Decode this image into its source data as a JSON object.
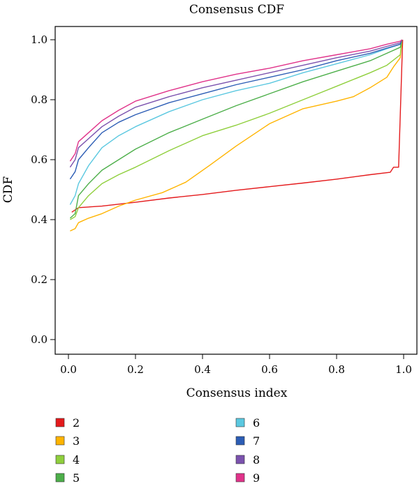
{
  "chart_data": {
    "type": "line",
    "title": "Consensus CDF",
    "xlabel": "Consensus index",
    "ylabel": "CDF",
    "xlim": [
      0,
      1
    ],
    "ylim": [
      0,
      1
    ],
    "xticks": [
      0.0,
      0.2,
      0.4,
      0.6,
      0.8,
      1.0
    ],
    "xtick_labels": [
      "0.0",
      "0.2",
      "0.4",
      "0.6",
      "0.8",
      "1.0"
    ],
    "yticks": [
      0.0,
      0.2,
      0.4,
      0.6,
      0.8,
      1.0
    ],
    "ytick_labels": [
      "0.0",
      "0.2",
      "0.4",
      "0.6",
      "0.8",
      "1.0"
    ],
    "grid": false,
    "legend_placement": "below",
    "series": [
      {
        "name": "2",
        "color": "#e41a1c",
        "points": [
          [
            0.01,
            0.425
          ],
          [
            0.03,
            0.44
          ],
          [
            0.1,
            0.445
          ],
          [
            0.2,
            0.458
          ],
          [
            0.3,
            0.472
          ],
          [
            0.4,
            0.484
          ],
          [
            0.5,
            0.498
          ],
          [
            0.6,
            0.51
          ],
          [
            0.7,
            0.522
          ],
          [
            0.8,
            0.535
          ],
          [
            0.9,
            0.55
          ],
          [
            0.96,
            0.558
          ],
          [
            0.97,
            0.575
          ],
          [
            0.985,
            0.575
          ],
          [
            0.997,
            1.0
          ]
        ]
      },
      {
        "name": "3",
        "color": "#ffb400",
        "points": [
          [
            0.005,
            0.362
          ],
          [
            0.02,
            0.37
          ],
          [
            0.03,
            0.39
          ],
          [
            0.06,
            0.405
          ],
          [
            0.1,
            0.42
          ],
          [
            0.15,
            0.445
          ],
          [
            0.2,
            0.465
          ],
          [
            0.28,
            0.49
          ],
          [
            0.35,
            0.525
          ],
          [
            0.42,
            0.58
          ],
          [
            0.5,
            0.645
          ],
          [
            0.6,
            0.72
          ],
          [
            0.7,
            0.77
          ],
          [
            0.8,
            0.795
          ],
          [
            0.85,
            0.81
          ],
          [
            0.9,
            0.84
          ],
          [
            0.95,
            0.875
          ],
          [
            0.97,
            0.91
          ],
          [
            0.99,
            0.94
          ],
          [
            0.995,
            1.0
          ]
        ]
      },
      {
        "name": "4",
        "color": "#8fcf3c",
        "points": [
          [
            0.005,
            0.4
          ],
          [
            0.02,
            0.41
          ],
          [
            0.03,
            0.44
          ],
          [
            0.06,
            0.48
          ],
          [
            0.1,
            0.52
          ],
          [
            0.15,
            0.55
          ],
          [
            0.2,
            0.575
          ],
          [
            0.3,
            0.63
          ],
          [
            0.4,
            0.68
          ],
          [
            0.5,
            0.715
          ],
          [
            0.6,
            0.755
          ],
          [
            0.7,
            0.8
          ],
          [
            0.8,
            0.845
          ],
          [
            0.9,
            0.89
          ],
          [
            0.95,
            0.915
          ],
          [
            0.99,
            0.95
          ],
          [
            0.995,
            1.0
          ]
        ]
      },
      {
        "name": "5",
        "color": "#4daf4a",
        "points": [
          [
            0.005,
            0.405
          ],
          [
            0.02,
            0.42
          ],
          [
            0.03,
            0.48
          ],
          [
            0.06,
            0.52
          ],
          [
            0.1,
            0.565
          ],
          [
            0.15,
            0.6
          ],
          [
            0.2,
            0.635
          ],
          [
            0.3,
            0.69
          ],
          [
            0.4,
            0.735
          ],
          [
            0.5,
            0.78
          ],
          [
            0.6,
            0.82
          ],
          [
            0.7,
            0.86
          ],
          [
            0.8,
            0.895
          ],
          [
            0.9,
            0.93
          ],
          [
            0.95,
            0.955
          ],
          [
            0.99,
            0.975
          ],
          [
            0.995,
            1.0
          ]
        ]
      },
      {
        "name": "6",
        "color": "#5bc8e0",
        "points": [
          [
            0.005,
            0.45
          ],
          [
            0.02,
            0.48
          ],
          [
            0.03,
            0.52
          ],
          [
            0.06,
            0.58
          ],
          [
            0.1,
            0.64
          ],
          [
            0.15,
            0.68
          ],
          [
            0.2,
            0.71
          ],
          [
            0.3,
            0.76
          ],
          [
            0.4,
            0.8
          ],
          [
            0.5,
            0.83
          ],
          [
            0.6,
            0.855
          ],
          [
            0.7,
            0.89
          ],
          [
            0.8,
            0.92
          ],
          [
            0.9,
            0.95
          ],
          [
            0.95,
            0.97
          ],
          [
            0.99,
            0.985
          ],
          [
            0.995,
            1.0
          ]
        ]
      },
      {
        "name": "7",
        "color": "#2c5db5",
        "points": [
          [
            0.005,
            0.535
          ],
          [
            0.02,
            0.56
          ],
          [
            0.03,
            0.6
          ],
          [
            0.06,
            0.64
          ],
          [
            0.1,
            0.69
          ],
          [
            0.15,
            0.725
          ],
          [
            0.2,
            0.75
          ],
          [
            0.3,
            0.79
          ],
          [
            0.4,
            0.82
          ],
          [
            0.5,
            0.85
          ],
          [
            0.6,
            0.875
          ],
          [
            0.7,
            0.9
          ],
          [
            0.8,
            0.93
          ],
          [
            0.9,
            0.955
          ],
          [
            0.95,
            0.972
          ],
          [
            0.99,
            0.985
          ],
          [
            0.995,
            1.0
          ]
        ]
      },
      {
        "name": "8",
        "color": "#7b52ae",
        "points": [
          [
            0.005,
            0.575
          ],
          [
            0.02,
            0.6
          ],
          [
            0.03,
            0.64
          ],
          [
            0.06,
            0.67
          ],
          [
            0.1,
            0.71
          ],
          [
            0.15,
            0.745
          ],
          [
            0.2,
            0.775
          ],
          [
            0.3,
            0.81
          ],
          [
            0.4,
            0.84
          ],
          [
            0.5,
            0.865
          ],
          [
            0.6,
            0.89
          ],
          [
            0.7,
            0.915
          ],
          [
            0.8,
            0.94
          ],
          [
            0.9,
            0.962
          ],
          [
            0.95,
            0.978
          ],
          [
            0.99,
            0.99
          ],
          [
            0.995,
            1.0
          ]
        ]
      },
      {
        "name": "9",
        "color": "#e0338a",
        "points": [
          [
            0.005,
            0.595
          ],
          [
            0.02,
            0.62
          ],
          [
            0.03,
            0.66
          ],
          [
            0.06,
            0.69
          ],
          [
            0.1,
            0.73
          ],
          [
            0.15,
            0.765
          ],
          [
            0.2,
            0.795
          ],
          [
            0.3,
            0.83
          ],
          [
            0.4,
            0.86
          ],
          [
            0.5,
            0.885
          ],
          [
            0.6,
            0.905
          ],
          [
            0.7,
            0.93
          ],
          [
            0.8,
            0.95
          ],
          [
            0.9,
            0.97
          ],
          [
            0.95,
            0.985
          ],
          [
            0.99,
            0.995
          ],
          [
            0.995,
            1.0
          ]
        ]
      }
    ]
  }
}
